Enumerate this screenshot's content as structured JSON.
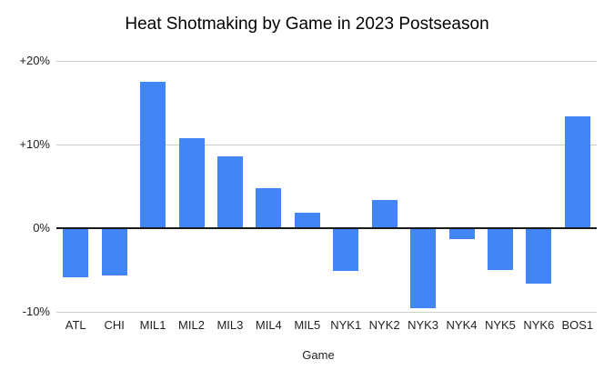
{
  "chart_data": {
    "type": "bar",
    "title": "Heat Shotmaking by Game in 2023 Postseason",
    "xlabel": "Game",
    "ylabel": "",
    "categories": [
      "ATL",
      "CHI",
      "MIL1",
      "MIL2",
      "MIL3",
      "MIL4",
      "MIL5",
      "NYK1",
      "NYK2",
      "NYK3",
      "NYK4",
      "NYK5",
      "NYK6",
      "BOS1"
    ],
    "values": [
      -5.9,
      -5.7,
      17.5,
      10.8,
      8.6,
      4.8,
      1.9,
      -5.1,
      3.4,
      -9.6,
      -1.3,
      -5.0,
      -6.6,
      13.4
    ],
    "value_unit": "%",
    "ylim": [
      -10,
      20
    ],
    "ytick_values": [
      20,
      10,
      0,
      -10
    ],
    "ytick_labels": [
      "+20%",
      "+10%",
      "0%",
      "-10%"
    ],
    "grid": "horizontal",
    "legend": false,
    "colors": {
      "bar": "#4285F4",
      "gridline": "#CCCCCC",
      "zero_line": "#1A1A1A",
      "title_text": "#000000",
      "axis_text": "#222222",
      "background": "#FFFFFF"
    }
  }
}
